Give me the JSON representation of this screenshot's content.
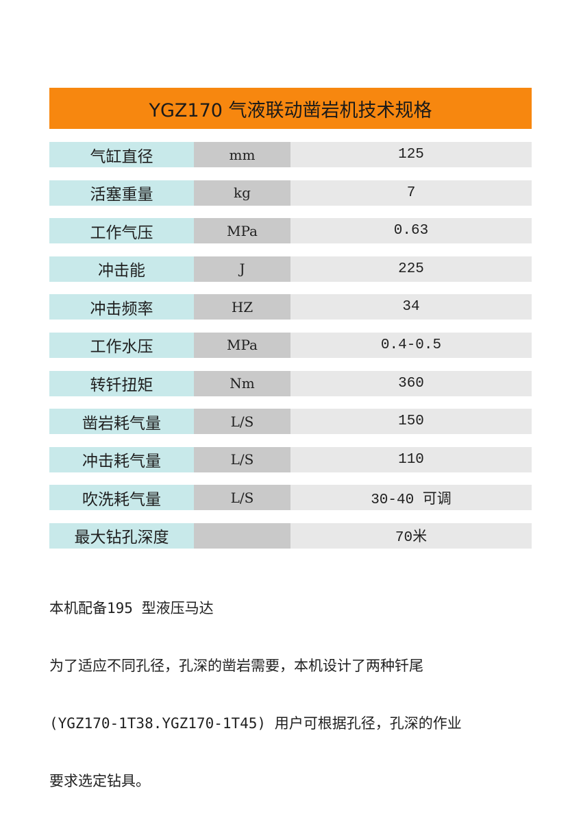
{
  "title": "YGZ170 气液联动凿岩机技术规格",
  "specs": [
    {
      "name": "气缸直径",
      "unit": "mm",
      "value": "125"
    },
    {
      "name": "活塞重量",
      "unit": "kg",
      "value": "7"
    },
    {
      "name": "工作气压",
      "unit": "MPa",
      "value": "0.63"
    },
    {
      "name": "冲击能",
      "unit": "J",
      "value": "225"
    },
    {
      "name": "冲击频率",
      "unit": "HZ",
      "value": "34"
    },
    {
      "name": "工作水压",
      "unit": "MPa",
      "value": "0.4-0.5"
    },
    {
      "name": "转钎扭矩",
      "unit": "Nm",
      "value": "360"
    },
    {
      "name": "凿岩耗气量",
      "unit": "L/S",
      "value": "150"
    },
    {
      "name": "冲击耗气量",
      "unit": "L/S",
      "value": "110"
    },
    {
      "name": "吹洗耗气量",
      "unit": "L/S",
      "value": "30-40 可调"
    },
    {
      "name": "最大钻孔深度",
      "unit": "",
      "value": "70米"
    }
  ],
  "notes": [
    "本机配备195 型液压马达",
    "为了适应不同孔径，孔深的凿岩需要，本机设计了两种钎尾",
    "(YGZ170-1T38.YGZ170-1T45) 用户可根据孔径，孔深的作业",
    "要求选定钻具。"
  ],
  "colors": {
    "title_bar": "#f7870f",
    "name_cell": "#c8e9ea",
    "unit_cell": "#c9c9c9",
    "value_cell": "#e8e8e8"
  }
}
